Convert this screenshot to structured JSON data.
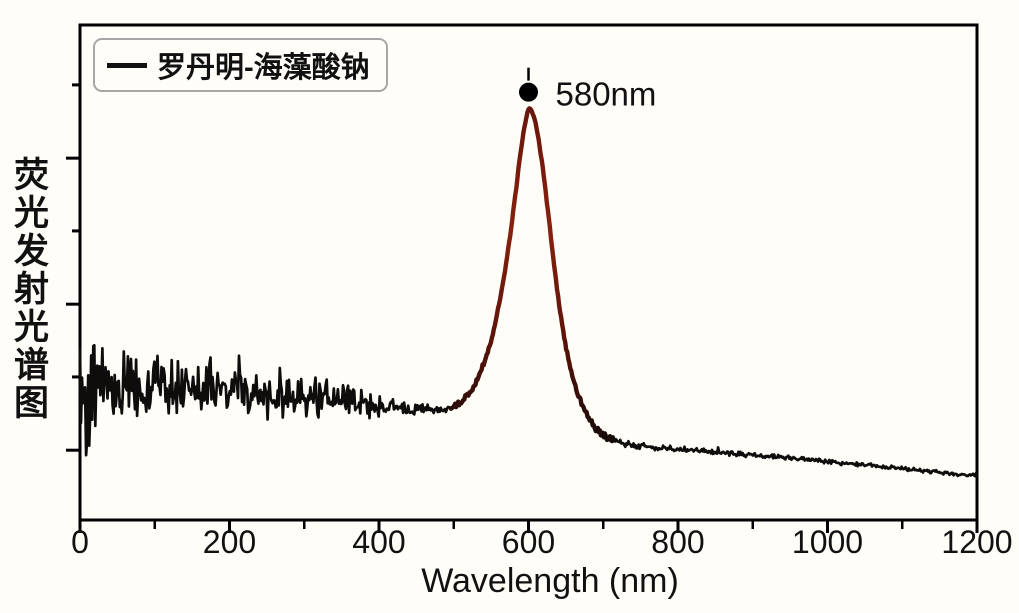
{
  "chart_data": {
    "type": "line",
    "title": "",
    "xlabel": "Wavelength (nm)",
    "ylabel": "荧光发射光谱图",
    "x_range": [
      0,
      1200
    ],
    "x_major_ticks": [
      0,
      200,
      400,
      600,
      800,
      1000,
      1200
    ],
    "x_minor_tick_step": 100,
    "y_axis_labeled": false,
    "y_ticks": [
      {
        "v": 0.879,
        "major": false
      },
      {
        "v": 0.731,
        "major": true
      },
      {
        "v": 0.584,
        "major": false
      },
      {
        "v": 0.436,
        "major": true
      },
      {
        "v": 0.289,
        "major": false
      },
      {
        "v": 0.141,
        "major": true
      }
    ],
    "background": "#fffdf7",
    "axis_color": "#000000",
    "legend": {
      "position": "top-left",
      "border_color": "#a6a6a6",
      "entries": [
        {
          "label": "罗丹明-海藻酸钠",
          "line_color": "#111111"
        }
      ]
    },
    "annotation": {
      "label": "580nm",
      "x_nm": 600,
      "marker": "filled-circle",
      "marker_color": "#000000"
    },
    "series": [
      {
        "name": "罗丹明-海藻酸钠",
        "color": "#0f0d0c",
        "peak_color": "#87210f",
        "peak_color_dark": "#5c1309",
        "peak_center_nm": 600,
        "peak_label_nm": 580,
        "peak_height_v": 0.833,
        "noise_seed": 42,
        "samples": 880,
        "mean_envelope_nm_v": [
          [
            0,
            0.272
          ],
          [
            40,
            0.27
          ],
          [
            80,
            0.266
          ],
          [
            120,
            0.263
          ],
          [
            160,
            0.26
          ],
          [
            200,
            0.256
          ],
          [
            240,
            0.252
          ],
          [
            280,
            0.249
          ],
          [
            320,
            0.243
          ],
          [
            360,
            0.237
          ],
          [
            400,
            0.231
          ],
          [
            430,
            0.227
          ],
          [
            460,
            0.223
          ],
          [
            480,
            0.222
          ],
          [
            495,
            0.226
          ],
          [
            510,
            0.238
          ],
          [
            522,
            0.258
          ],
          [
            532,
            0.284
          ],
          [
            542,
            0.322
          ],
          [
            552,
            0.374
          ],
          [
            560,
            0.43
          ],
          [
            568,
            0.497
          ],
          [
            576,
            0.58
          ],
          [
            583,
            0.664
          ],
          [
            589,
            0.738
          ],
          [
            594,
            0.79
          ],
          [
            598,
            0.82
          ],
          [
            601,
            0.833
          ],
          [
            604,
            0.828
          ],
          [
            608,
            0.812
          ],
          [
            613,
            0.775
          ],
          [
            619,
            0.712
          ],
          [
            626,
            0.625
          ],
          [
            633,
            0.532
          ],
          [
            640,
            0.445
          ],
          [
            648,
            0.366
          ],
          [
            656,
            0.306
          ],
          [
            664,
            0.262
          ],
          [
            672,
            0.23
          ],
          [
            680,
            0.207
          ],
          [
            690,
            0.186
          ],
          [
            700,
            0.171
          ],
          [
            712,
            0.16
          ],
          [
            725,
            0.154
          ],
          [
            750,
            0.149
          ],
          [
            800,
            0.143
          ],
          [
            850,
            0.137
          ],
          [
            900,
            0.131
          ],
          [
            950,
            0.125
          ],
          [
            1000,
            0.118
          ],
          [
            1050,
            0.111
          ],
          [
            1100,
            0.104
          ],
          [
            1150,
            0.096
          ],
          [
            1200,
            0.089
          ]
        ],
        "noise_amp_nm_v": [
          [
            0,
            0.155
          ],
          [
            20,
            0.15
          ],
          [
            50,
            0.12
          ],
          [
            80,
            0.105
          ],
          [
            110,
            0.1
          ],
          [
            140,
            0.095
          ],
          [
            170,
            0.085
          ],
          [
            200,
            0.082
          ],
          [
            230,
            0.075
          ],
          [
            260,
            0.07
          ],
          [
            290,
            0.072
          ],
          [
            310,
            0.078
          ],
          [
            330,
            0.068
          ],
          [
            360,
            0.052
          ],
          [
            390,
            0.042
          ],
          [
            420,
            0.032
          ],
          [
            450,
            0.022
          ],
          [
            480,
            0.016
          ],
          [
            510,
            0.011
          ],
          [
            540,
            0.007
          ],
          [
            570,
            0.004
          ],
          [
            600,
            0.003
          ],
          [
            630,
            0.004
          ],
          [
            660,
            0.006
          ],
          [
            680,
            0.009
          ],
          [
            700,
            0.011
          ],
          [
            730,
            0.01
          ],
          [
            780,
            0.009
          ],
          [
            850,
            0.008
          ],
          [
            950,
            0.0075
          ],
          [
            1050,
            0.007
          ],
          [
            1200,
            0.0065
          ]
        ]
      }
    ]
  }
}
